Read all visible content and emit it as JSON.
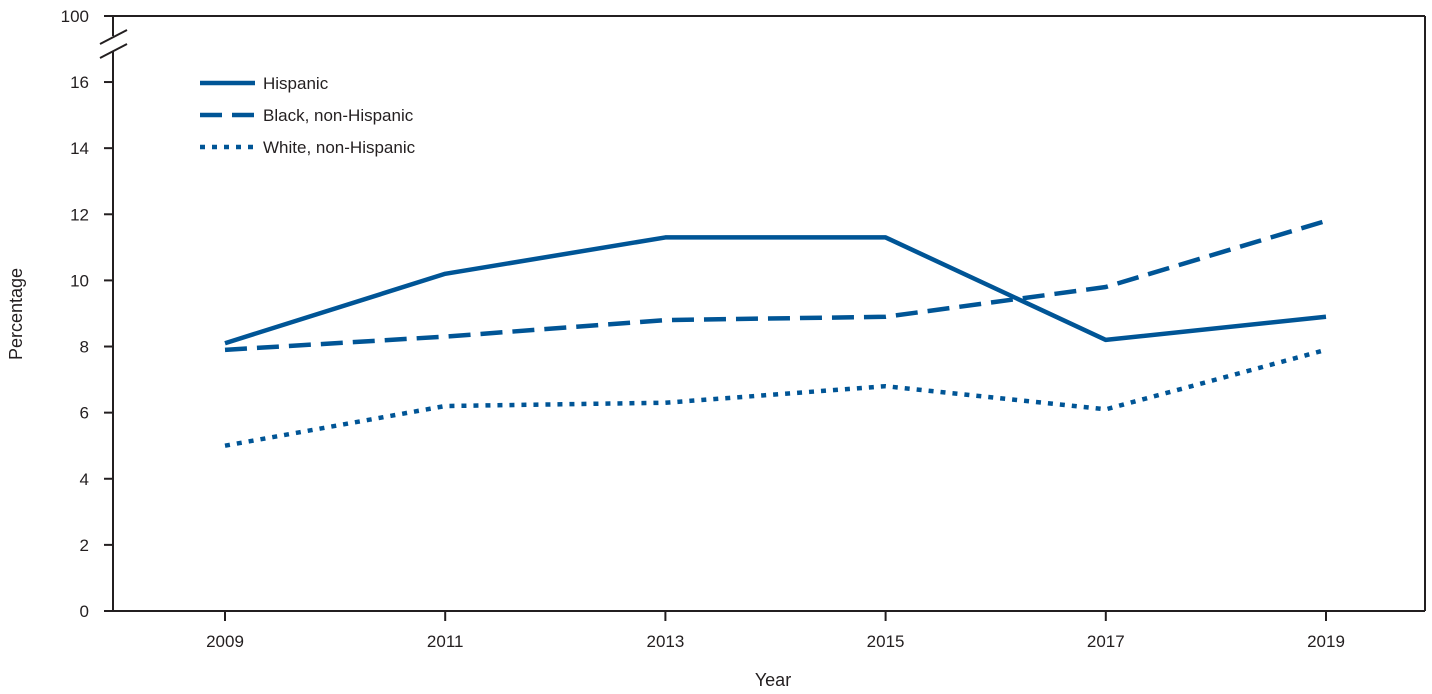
{
  "chart_data": {
    "type": "line",
    "xlabel": "Year",
    "ylabel": "Percentage",
    "x": [
      2009,
      2011,
      2013,
      2015,
      2017,
      2019
    ],
    "x_tick_labels": [
      "2009",
      "2011",
      "2013",
      "2015",
      "2017",
      "2019"
    ],
    "y_ticks": [
      0,
      2,
      4,
      6,
      8,
      10,
      12,
      14,
      16
    ],
    "y_tick_labels": [
      "0",
      "2",
      "4",
      "6",
      "8",
      "10",
      "12",
      "14",
      "16"
    ],
    "y_break_label": "100",
    "ylim": [
      0,
      100
    ],
    "y_axis_break": true,
    "grid": false,
    "legend_position": "top-left",
    "series": [
      {
        "name": "Hispanic",
        "style": "solid",
        "color": "#005596",
        "values": [
          8.1,
          10.2,
          11.3,
          11.3,
          8.2,
          8.9
        ]
      },
      {
        "name": "Black, non-Hispanic",
        "style": "dashed",
        "color": "#005596",
        "values": [
          7.9,
          8.3,
          8.8,
          8.9,
          9.8,
          11.8
        ]
      },
      {
        "name": "White, non-Hispanic",
        "style": "dotted",
        "color": "#005596",
        "values": [
          5.0,
          6.2,
          6.3,
          6.8,
          6.1,
          7.9
        ]
      }
    ]
  }
}
